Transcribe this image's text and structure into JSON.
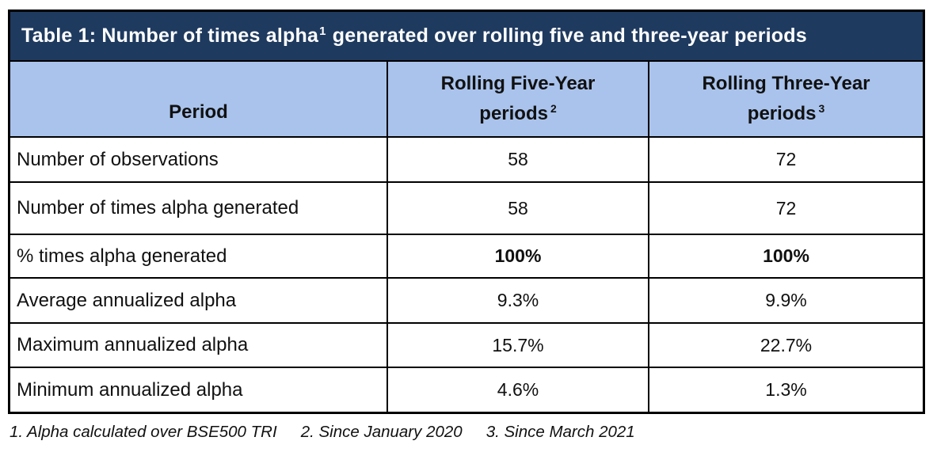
{
  "title": {
    "pre": "Table 1: Number of times alpha",
    "sup": "1",
    "post": " generated over rolling five and three-year periods"
  },
  "table": {
    "columns": {
      "period_label": "Period",
      "five_year_line1": "Rolling Five-Year",
      "five_year_line2": "periods",
      "five_year_sup": "2",
      "three_year_line1": "Rolling Three-Year",
      "three_year_line2": "periods",
      "three_year_sup": "3"
    },
    "rows": [
      {
        "label": "Number of observations",
        "five_year": "58",
        "three_year": "72"
      },
      {
        "label": "Number of times alpha generated",
        "five_year": "58",
        "three_year": "72"
      },
      {
        "label": "% times alpha generated",
        "five_year": "100%",
        "three_year": "100%"
      },
      {
        "label": "Average annualized alpha",
        "five_year": "9.3%",
        "three_year": "9.9%"
      },
      {
        "label": "Maximum annualized alpha",
        "five_year": "15.7%",
        "three_year": "22.7%"
      },
      {
        "label": "Minimum annualized alpha",
        "five_year": "4.6%",
        "three_year": "1.3%"
      }
    ]
  },
  "footnotes": [
    "1. Alpha calculated over BSE500 TRI",
    "2. Since January 2020",
    "3. Since March 2021"
  ],
  "colors": {
    "title_bg": "#1F3A5F",
    "title_text": "#FFFFFF",
    "header_bg": "#A9C3EC",
    "border": "#000000",
    "body_text": "#111111"
  }
}
